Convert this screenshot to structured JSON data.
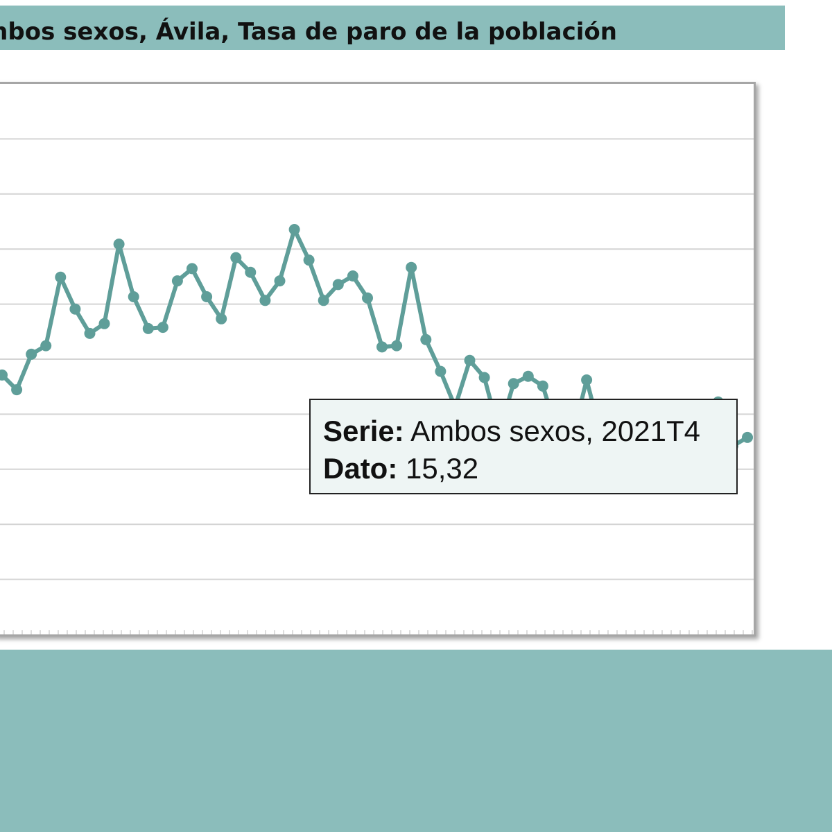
{
  "header": {
    "title": "mbos sexos, Ávila, Tasa de paro de la población"
  },
  "tooltip": {
    "serie_label": "Serie:",
    "serie_value": "Ambos sexos, 2021T4",
    "dato_label": "Dato:",
    "dato_value": "15,32"
  },
  "colors": {
    "line": "#5f9e99",
    "band": "#8bbdbb",
    "grid": "#d4d4d4"
  },
  "chart_data": {
    "type": "line",
    "title": "",
    "xlabel": "",
    "ylabel": "",
    "ylim": [
      0,
      45
    ],
    "grid": true,
    "series": [
      {
        "name": "Ambos sexos",
        "values": [
          21.2,
          20.0,
          22.9,
          23.6,
          29.2,
          26.6,
          24.6,
          25.4,
          31.9,
          27.6,
          25.0,
          25.1,
          28.9,
          29.9,
          27.6,
          25.8,
          30.8,
          29.6,
          27.3,
          28.9,
          33.1,
          30.6,
          27.3,
          28.6,
          29.3,
          27.5,
          23.5,
          23.6,
          30.0,
          24.1,
          21.5,
          18.6,
          22.4,
          21.0,
          16.5,
          20.5,
          21.1,
          20.3,
          16.5,
          16.0,
          20.8,
          16.2,
          15.8,
          15.6,
          16.0,
          16.4,
          17.3,
          18.0,
          17.7,
          19.0,
          15.4,
          16.1
        ]
      }
    ]
  }
}
